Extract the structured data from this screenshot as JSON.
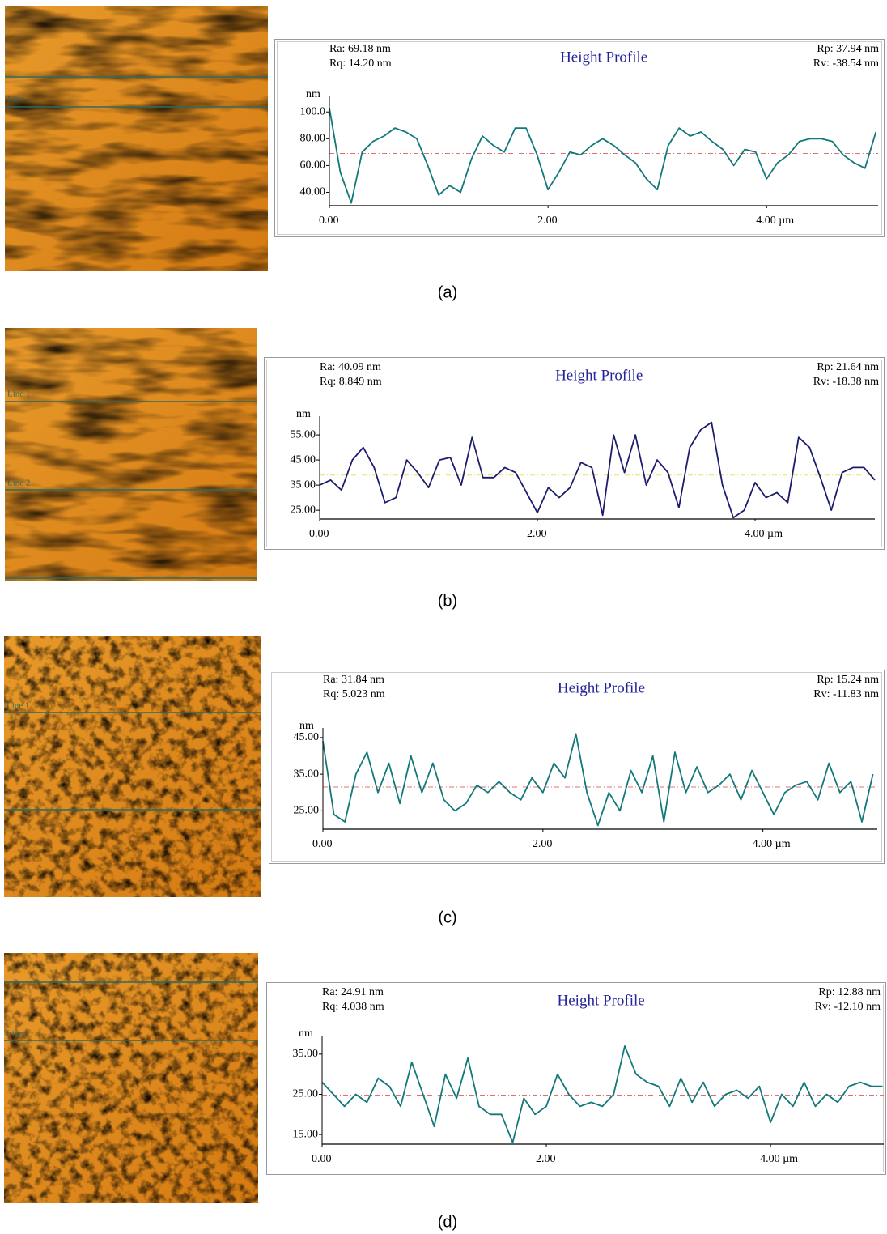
{
  "chart_data": [
    {
      "type": "line",
      "title": "Height Profile",
      "caption": "(a)",
      "image_labels": [
        "Line 1"
      ],
      "stats": [
        "Ra: 69.18 nm",
        "Rq: 14.20 nm",
        "Rp: 37.94 nm",
        "Rv: -38.54 nm"
      ],
      "y_label": "nm",
      "xlim": [
        0,
        5.02
      ],
      "xticks": [
        {
          "value": 0,
          "label": "0.00"
        },
        {
          "value": 2,
          "label": "2.00"
        },
        {
          "value": 4,
          "label": "4.00 µm"
        }
      ],
      "ylim": [
        30,
        108
      ],
      "yticks": [
        {
          "value": 100,
          "label": "100.0"
        },
        {
          "value": 80,
          "label": "80.00"
        },
        {
          "value": 60,
          "label": "60.00"
        },
        {
          "value": 40,
          "label": "40.00"
        }
      ],
      "mean_line": {
        "value": 69,
        "color": "#e07070"
      },
      "series": [
        {
          "color": "#12787a",
          "x": [
            0,
            0.1,
            0.2,
            0.3,
            0.4,
            0.5,
            0.6,
            0.7,
            0.8,
            0.9,
            1.0,
            1.1,
            1.2,
            1.3,
            1.4,
            1.5,
            1.6,
            1.7,
            1.8,
            1.9,
            2.0,
            2.1,
            2.2,
            2.3,
            2.4,
            2.5,
            2.6,
            2.7,
            2.8,
            2.9,
            3.0,
            3.1,
            3.2,
            3.3,
            3.4,
            3.5,
            3.6,
            3.7,
            3.8,
            3.9,
            4.0,
            4.1,
            4.2,
            4.3,
            4.4,
            4.5,
            4.6,
            4.7,
            4.8,
            4.9,
            5.0
          ],
          "values": [
            103,
            55,
            32,
            70,
            78,
            82,
            88,
            85,
            80,
            60,
            38,
            45,
            40,
            65,
            82,
            75,
            70,
            88,
            88,
            68,
            42,
            55,
            70,
            68,
            75,
            80,
            75,
            68,
            62,
            50,
            42,
            75,
            88,
            82,
            85,
            78,
            72,
            60,
            72,
            70,
            50,
            62,
            68,
            78,
            80,
            80,
            78,
            68,
            62,
            58,
            85
          ]
        }
      ]
    },
    {
      "type": "line",
      "title": "Height Profile",
      "caption": "(b)",
      "image_labels": [
        "Line 1",
        "Line 2"
      ],
      "stats": [
        "Ra: 40.09 nm",
        "Rq: 8.849 nm",
        "Rp: 21.64 nm",
        "Rv: -18.38 nm"
      ],
      "y_label": "nm",
      "xlim": [
        0,
        5.1
      ],
      "xticks": [
        {
          "value": 0,
          "label": "0.00"
        },
        {
          "value": 2,
          "label": "2.00"
        },
        {
          "value": 4,
          "label": "4.00 µm"
        }
      ],
      "ylim": [
        21.5,
        60.5
      ],
      "yticks": [
        {
          "value": 55,
          "label": "55.00"
        },
        {
          "value": 45,
          "label": "45.00"
        },
        {
          "value": 35,
          "label": "35.00"
        },
        {
          "value": 25,
          "label": "25.00"
        }
      ],
      "mean_line": {
        "value": 39,
        "color": "#e8e060"
      },
      "series": [
        {
          "color": "#1c1c6e",
          "x": [
            0,
            0.1,
            0.2,
            0.3,
            0.4,
            0.5,
            0.6,
            0.7,
            0.8,
            0.9,
            1.0,
            1.1,
            1.2,
            1.3,
            1.4,
            1.5,
            1.6,
            1.7,
            1.8,
            1.9,
            2.0,
            2.1,
            2.2,
            2.3,
            2.4,
            2.5,
            2.6,
            2.7,
            2.8,
            2.9,
            3.0,
            3.1,
            3.2,
            3.3,
            3.4,
            3.5,
            3.6,
            3.7,
            3.8,
            3.9,
            4.0,
            4.1,
            4.2,
            4.3,
            4.4,
            4.5,
            4.6,
            4.7,
            4.8,
            4.9,
            5.0,
            5.1
          ],
          "values": [
            35,
            37,
            33,
            45,
            50,
            42,
            28,
            30,
            45,
            40,
            34,
            45,
            46,
            35,
            54,
            38,
            38,
            42,
            40,
            32,
            24,
            34,
            30,
            34,
            44,
            42,
            23,
            55,
            40,
            55,
            35,
            45,
            40,
            26,
            50,
            57,
            60,
            35,
            22,
            25,
            36,
            30,
            32,
            28,
            54,
            50,
            38,
            25,
            40,
            42,
            42,
            37
          ]
        }
      ]
    },
    {
      "type": "line",
      "title": "Height Profile",
      "caption": "(c)",
      "image_labels": [
        "Line 1"
      ],
      "stats": [
        "Ra: 31.84 nm",
        "Rq: 5.023 nm",
        "Rp: 15.24 nm",
        "Rv: -11.83 nm"
      ],
      "y_label": "nm",
      "xlim": [
        0,
        5.04
      ],
      "xticks": [
        {
          "value": 0,
          "label": "0.00"
        },
        {
          "value": 2,
          "label": "2.00"
        },
        {
          "value": 4,
          "label": "4.00 µm"
        }
      ],
      "ylim": [
        20,
        46.3
      ],
      "yticks": [
        {
          "value": 45,
          "label": "45.00"
        },
        {
          "value": 35,
          "label": "35.00"
        },
        {
          "value": 25,
          "label": "25.00"
        }
      ],
      "mean_line": {
        "value": 31.5,
        "color": "#e07070"
      },
      "series": [
        {
          "color": "#12787a",
          "x": [
            0,
            0.1,
            0.2,
            0.3,
            0.4,
            0.5,
            0.6,
            0.7,
            0.8,
            0.9,
            1.0,
            1.1,
            1.2,
            1.3,
            1.4,
            1.5,
            1.6,
            1.7,
            1.8,
            1.9,
            2.0,
            2.1,
            2.2,
            2.3,
            2.4,
            2.5,
            2.6,
            2.7,
            2.8,
            2.9,
            3.0,
            3.1,
            3.2,
            3.3,
            3.4,
            3.5,
            3.6,
            3.7,
            3.8,
            3.9,
            4.0,
            4.1,
            4.2,
            4.3,
            4.4,
            4.5,
            4.6,
            4.7,
            4.8,
            4.9,
            5.0
          ],
          "values": [
            44,
            24,
            22,
            35,
            41,
            30,
            38,
            27,
            40,
            30,
            38,
            28,
            25,
            27,
            32,
            30,
            33,
            30,
            28,
            34,
            30,
            38,
            34,
            46,
            30,
            21,
            30,
            25,
            36,
            30,
            40,
            22,
            41,
            30,
            37,
            30,
            32,
            35,
            28,
            36,
            30,
            24,
            30,
            32,
            33,
            28,
            38,
            30,
            33,
            22,
            35
          ]
        }
      ]
    },
    {
      "type": "line",
      "title": "Height Profile",
      "caption": "(d)",
      "image_labels": [
        "Line 1"
      ],
      "stats": [
        "Ra: 24.91 nm",
        "Rq: 4.038 nm",
        "Rp: 12.88 nm",
        "Rv: -12.10 nm"
      ],
      "y_label": "nm",
      "xlim": [
        0,
        5.01
      ],
      "xticks": [
        {
          "value": 0,
          "label": "0.00"
        },
        {
          "value": 2,
          "label": "2.00"
        },
        {
          "value": 4,
          "label": "4.00 µm"
        }
      ],
      "ylim": [
        12.6,
        38.4
      ],
      "yticks": [
        {
          "value": 35,
          "label": "35.00"
        },
        {
          "value": 25,
          "label": "25.00"
        },
        {
          "value": 15,
          "label": "15.00"
        }
      ],
      "mean_line": {
        "value": 24.8,
        "color": "#e07070"
      },
      "series": [
        {
          "color": "#12787a",
          "x": [
            0,
            0.1,
            0.2,
            0.3,
            0.4,
            0.5,
            0.6,
            0.7,
            0.8,
            0.9,
            1.0,
            1.1,
            1.2,
            1.3,
            1.4,
            1.5,
            1.6,
            1.7,
            1.8,
            1.9,
            2.0,
            2.1,
            2.2,
            2.3,
            2.4,
            2.5,
            2.6,
            2.7,
            2.8,
            2.9,
            3.0,
            3.1,
            3.2,
            3.3,
            3.4,
            3.5,
            3.6,
            3.7,
            3.8,
            3.9,
            4.0,
            4.1,
            4.2,
            4.3,
            4.4,
            4.5,
            4.6,
            4.7,
            4.8,
            4.9,
            5.0
          ],
          "values": [
            28,
            25,
            22,
            25,
            23,
            29,
            27,
            22,
            33,
            25,
            17,
            30,
            24,
            34,
            22,
            20,
            20,
            13,
            24,
            20,
            22,
            30,
            25,
            22,
            23,
            22,
            25,
            37,
            30,
            28,
            27,
            22,
            29,
            23,
            28,
            22,
            25,
            26,
            24,
            27,
            18,
            25,
            22,
            28,
            22,
            25,
            23,
            27,
            28,
            27,
            27
          ]
        }
      ]
    }
  ]
}
